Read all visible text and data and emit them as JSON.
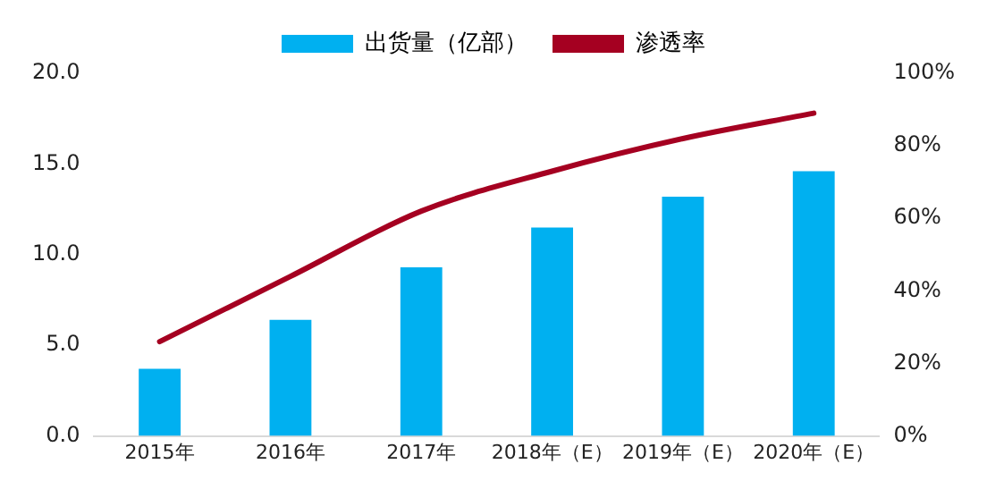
{
  "chart_data": {
    "type": "bar",
    "categories": [
      "2015年",
      "2016年",
      "2017年",
      "2018年（E）",
      "2019年（E）",
      "2020年（E）"
    ],
    "series": [
      {
        "name": "出货量（亿部）",
        "color": "#00b0f0",
        "values": [
          3.7,
          6.4,
          9.3,
          11.5,
          13.2,
          14.6
        ]
      },
      {
        "name": "渗透率",
        "type": "line",
        "axis": "y2",
        "color": "#a50021",
        "marker": "none",
        "values": [
          26,
          44,
          62,
          73,
          82,
          89
        ]
      }
    ],
    "ylim": [
      0,
      20
    ],
    "yticks": [
      {
        "value": 0,
        "label": "0.0"
      },
      {
        "value": 5,
        "label": "5.0"
      },
      {
        "value": 10,
        "label": "10.0"
      },
      {
        "value": 15,
        "label": "15.0"
      },
      {
        "value": 20,
        "label": "20.0"
      }
    ],
    "y2lim": [
      0,
      100
    ],
    "y2ticks": [
      {
        "value": 0,
        "label": "0%"
      },
      {
        "value": 20,
        "label": "20%"
      },
      {
        "value": 40,
        "label": "40%"
      },
      {
        "value": 60,
        "label": "60%"
      },
      {
        "value": 80,
        "label": "80%"
      },
      {
        "value": 100,
        "label": "100%"
      }
    ],
    "grid": false,
    "legend": "top"
  }
}
